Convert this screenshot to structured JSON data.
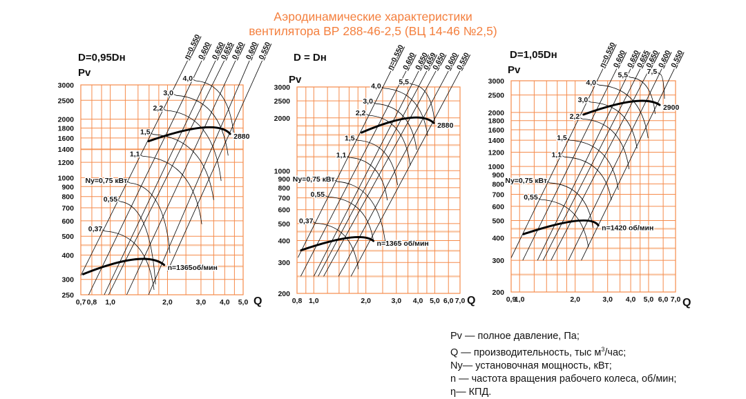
{
  "title": {
    "line1": "Аэродинамические характеристики",
    "line2": "вентилятора  ВР 288-46-2,5 (ВЦ 14-46 №2,5)"
  },
  "colors": {
    "grid": "#f58a4a",
    "grid_light": "#f9c7a6",
    "title": "#f4803f",
    "curves": "#000000"
  },
  "chart_data": [
    {
      "type": "line",
      "title": "D=0,95Dн",
      "ylabel": "Pv",
      "xlabel": "Q",
      "xscale": "log",
      "yscale": "log",
      "xlim": [
        0.7,
        5.0
      ],
      "ylim": [
        250,
        3000
      ],
      "grid": true,
      "xticks": [
        {
          "v": 0.7,
          "t": "0,7"
        },
        {
          "v": 0.8,
          "t": "0,8"
        },
        {
          "v": 1.0,
          "t": "1,0"
        },
        {
          "v": 2.0,
          "t": "2,0"
        },
        {
          "v": 3.0,
          "t": "3,0"
        },
        {
          "v": 4.0,
          "t": "4,0"
        },
        {
          "v": 5.0,
          "t": "5,0"
        }
      ],
      "yticks": [
        {
          "v": 250,
          "t": "250"
        },
        {
          "v": 300,
          "t": "300"
        },
        {
          "v": 400,
          "t": "400"
        },
        {
          "v": 500,
          "t": "500"
        },
        {
          "v": 600,
          "t": "600"
        },
        {
          "v": 700,
          "t": "700"
        },
        {
          "v": 800,
          "t": "800"
        },
        {
          "v": 900,
          "t": "900"
        },
        {
          "v": 1000,
          "t": "1000"
        },
        {
          "v": 1200,
          "t": "1200"
        },
        {
          "v": 1400,
          "t": "1400"
        },
        {
          "v": 1600,
          "t": "1600"
        },
        {
          "v": 1800,
          "t": "1800"
        },
        {
          "v": 2000,
          "t": "2000"
        },
        {
          "v": 2500,
          "t": "2500"
        },
        {
          "v": 3000,
          "t": "3000"
        }
      ],
      "grid_x": [
        0.7,
        0.8,
        0.9,
        1.0,
        1.2,
        1.4,
        1.6,
        1.8,
        2.0,
        2.5,
        3.0,
        3.5,
        4.0,
        4.5,
        5.0
      ],
      "grid_x_light": [],
      "grid_y_light": [
        350,
        450,
        1400
      ],
      "series": [
        {
          "name": "2880",
          "points": [
            [
              1.59,
              1540
            ],
            [
              3.06,
              1810
            ],
            [
              4.27,
              1680
            ]
          ]
        },
        {
          "name": "n=1365об/мин",
          "points": [
            [
              0.72,
              319
            ],
            [
              1.34,
              380
            ],
            [
              1.92,
              356
            ]
          ]
        }
      ],
      "efficiency_lines": [
        {
          "label": "η=0.550",
          "points": [
            [
              0.7,
              314
            ],
            [
              2.55,
              4000
            ]
          ]
        },
        {
          "label": "0,600",
          "points": [
            [
              0.77,
              250
            ],
            [
              3.03,
              4000
            ]
          ]
        },
        {
          "label": "0,650",
          "points": [
            [
              0.93,
              250
            ],
            [
              3.58,
              4000
            ]
          ]
        },
        {
          "label": "0,655",
          "points": [
            [
              0.98,
              250
            ],
            [
              3.98,
              4000
            ]
          ]
        },
        {
          "label": "0,650",
          "points": [
            [
              1.22,
              250
            ],
            [
              4.56,
              4000
            ]
          ]
        },
        {
          "label": "0,600",
          "points": [
            [
              1.59,
              250
            ],
            [
              5.4,
              4000
            ]
          ]
        },
        {
          "label": "0,550",
          "points": [
            [
              2.0,
              330
            ],
            [
              6.3,
              4000
            ]
          ]
        }
      ],
      "power_curves": [
        {
          "label": "4,0",
          "points": [
            [
              2.81,
              3150
            ],
            [
              4.45,
              1710
            ]
          ]
        },
        {
          "label": "3,0",
          "points": [
            [
              2.22,
              2650
            ],
            [
              4.17,
              1300
            ]
          ]
        },
        {
          "label": "2,2",
          "points": [
            [
              1.96,
              2220
            ],
            [
              3.83,
              963
            ]
          ]
        },
        {
          "label": "1,5",
          "points": [
            [
              1.68,
              1670
            ],
            [
              3.5,
              768
            ]
          ]
        },
        {
          "label": "1,1",
          "points": [
            [
              1.48,
              1290
            ],
            [
              3.03,
              577
            ]
          ]
        },
        {
          "label": "Ny=0,75 кВт",
          "points": [
            [
              1.27,
              940
            ],
            [
              2.06,
              409
            ]
          ]
        },
        {
          "label": "0,55",
          "points": [
            [
              1.13,
              754
            ],
            [
              1.73,
              283
            ]
          ]
        },
        {
          "label": "0,37",
          "points": [
            [
              0.94,
              531
            ],
            [
              1.7,
              265
            ]
          ]
        }
      ]
    },
    {
      "type": "line",
      "title": "D = Dн",
      "ylabel": "Pv",
      "xlabel": "Q",
      "xscale": "log",
      "yscale": "log",
      "xlim": [
        0.8,
        7.0
      ],
      "ylim": [
        200,
        3000
      ],
      "grid": true,
      "xticks": [
        {
          "v": 0.8,
          "t": "0,8"
        },
        {
          "v": 1.0,
          "t": "1,0"
        },
        {
          "v": 2.0,
          "t": "2,0"
        },
        {
          "v": 3.0,
          "t": "3,0"
        },
        {
          "v": 4.0,
          "t": "4,0"
        },
        {
          "v": 5.0,
          "t": "5,0"
        },
        {
          "v": 6.0,
          "t": "6,0"
        },
        {
          "v": 7.0,
          "t": "7,0"
        }
      ],
      "yticks": [
        {
          "v": 200,
          "t": "200"
        },
        {
          "v": 300,
          "t": "300"
        },
        {
          "v": 400,
          "t": "400"
        },
        {
          "v": 500,
          "t": "500"
        },
        {
          "v": 600,
          "t": "600"
        },
        {
          "v": 700,
          "t": "700"
        },
        {
          "v": 800,
          "t": "800"
        },
        {
          "v": 900,
          "t": "900"
        },
        {
          "v": 1000,
          "t": "1000"
        },
        {
          "v": 2000,
          "t": "2000"
        },
        {
          "v": 2500,
          "t": "2500"
        },
        {
          "v": 3000,
          "t": "3000"
        }
      ],
      "grid_x": [
        0.8,
        0.9,
        1.0,
        1.2,
        1.4,
        1.6,
        1.8,
        2.0,
        2.5,
        3.0,
        3.5,
        4.0,
        4.5,
        5.0,
        6.0,
        7.0
      ],
      "grid_x_light": [],
      "grid_y_light": [
        250,
        350,
        450,
        1200,
        1400,
        1600,
        1800
      ],
      "series": [
        {
          "name": "2880",
          "points": [
            [
              1.89,
              1650
            ],
            [
              3.5,
              1995
            ],
            [
              4.94,
              1870
            ]
          ]
        },
        {
          "name": "n=1365 об/мин",
          "points": [
            [
              0.845,
              352
            ],
            [
              1.6,
              415
            ],
            [
              2.21,
              398
            ]
          ]
        }
      ],
      "efficiency_lines": [
        {
          "label": "η=0.550",
          "points": [
            [
              0.81,
              320
            ],
            [
              2.79,
              3700
            ]
          ]
        },
        {
          "label": "0,600",
          "points": [
            [
              0.84,
              250
            ],
            [
              3.42,
              3700
            ]
          ]
        },
        {
          "label": "0,650",
          "points": [
            [
              1.0,
              250
            ],
            [
              4.04,
              3700
            ]
          ]
        },
        {
          "label": "0,659",
          "points": [
            [
              1.06,
              250
            ],
            [
              4.5,
              3700
            ]
          ]
        },
        {
          "label": "0,650",
          "points": [
            [
              1.14,
              250
            ],
            [
              5.08,
              3700
            ]
          ]
        },
        {
          "label": "0,600",
          "points": [
            [
              1.39,
              250
            ],
            [
              6.0,
              3700
            ]
          ]
        },
        {
          "label": "0,550",
          "points": [
            [
              1.64,
              250
            ],
            [
              7.0,
              3700
            ]
          ]
        }
      ],
      "power_curves": [
        {
          "label": "5,5",
          "points": [
            [
              3.68,
              3110
            ],
            [
              4.99,
              1890
            ]
          ]
        },
        {
          "label": "4,0",
          "points": [
            [
              2.54,
              2950
            ],
            [
              4.55,
              1580
            ]
          ]
        },
        {
          "label": "3,0",
          "points": [
            [
              2.28,
              2410
            ],
            [
              3.93,
              1315
            ]
          ]
        },
        {
          "label": "2,2",
          "points": [
            [
              2.07,
              2070
            ],
            [
              3.61,
              1070
            ]
          ]
        },
        {
          "label": "1,5",
          "points": [
            [
              1.79,
              1490
            ],
            [
              3.05,
              828
            ]
          ]
        },
        {
          "label": "1,1",
          "points": [
            [
              1.6,
              1190
            ],
            [
              2.66,
              678
            ]
          ]
        },
        {
          "label": "Ny=0,75 кВт",
          "points": [
            [
              1.37,
              867
            ],
            [
              2.6,
              380
            ]
          ]
        },
        {
          "label": "0,55",
          "points": [
            [
              1.2,
              710
            ],
            [
              2.21,
              400
            ]
          ]
        },
        {
          "label": "0,37",
          "points": [
            [
              1.03,
              502
            ],
            [
              1.81,
              275
            ]
          ]
        }
      ]
    },
    {
      "type": "line",
      "title": "D=1,05Dн",
      "ylabel": "Pv",
      "xlabel": "Q",
      "xscale": "log",
      "yscale": "log",
      "xlim": [
        0.9,
        7.0
      ],
      "ylim": [
        200,
        3000
      ],
      "grid": true,
      "xticks": [
        {
          "v": 0.9,
          "t": "0,9"
        },
        {
          "v": 1.0,
          "t": "1,0"
        },
        {
          "v": 2.0,
          "t": "2,0"
        },
        {
          "v": 3.0,
          "t": "3,0"
        },
        {
          "v": 4.0,
          "t": "4,0"
        },
        {
          "v": 5.0,
          "t": "5,0"
        },
        {
          "v": 6.0,
          "t": "6,0"
        },
        {
          "v": 7.0,
          "t": "7,0"
        }
      ],
      "yticks": [
        {
          "v": 200,
          "t": "200"
        },
        {
          "v": 300,
          "t": "300"
        },
        {
          "v": 400,
          "t": "400"
        },
        {
          "v": 500,
          "t": "500"
        },
        {
          "v": 600,
          "t": "600"
        },
        {
          "v": 700,
          "t": "700"
        },
        {
          "v": 800,
          "t": "800"
        },
        {
          "v": 900,
          "t": "900"
        },
        {
          "v": 1000,
          "t": "1000"
        },
        {
          "v": 1200,
          "t": "1200"
        },
        {
          "v": 1400,
          "t": "1400"
        },
        {
          "v": 1600,
          "t": "1600"
        },
        {
          "v": 1800,
          "t": "1800"
        },
        {
          "v": 2000,
          "t": "2000"
        },
        {
          "v": 2500,
          "t": "2500"
        },
        {
          "v": 3000,
          "t": "3000"
        }
      ],
      "grid_x": [
        0.9,
        1.0,
        1.2,
        1.4,
        1.6,
        1.8,
        2.0,
        2.5,
        3.0,
        3.5,
        4.0,
        4.5,
        5.0,
        6.0,
        7.0
      ],
      "grid_x_light": [],
      "grid_y_light": [
        250,
        350,
        450
      ],
      "series": [
        {
          "name": "2900",
          "points": [
            [
              2.22,
              1945
            ],
            [
              4.07,
              2300
            ],
            [
              5.74,
              2200
            ]
          ]
        },
        {
          "name": "n=1420 об/мин",
          "points": [
            [
              1.05,
              420
            ],
            [
              2.0,
              497
            ],
            [
              2.67,
              470
            ]
          ]
        }
      ],
      "efficiency_lines": [
        {
          "label": "η=0.550",
          "points": [
            [
              0.9,
              310
            ],
            [
              2.83,
              3500
            ]
          ]
        },
        {
          "label": "0,600",
          "points": [
            [
              1.04,
              300
            ],
            [
              3.36,
              3500
            ]
          ]
        },
        {
          "label": "0,650",
          "points": [
            [
              1.25,
              300
            ],
            [
              4.0,
              3500
            ]
          ]
        },
        {
          "label": "0,655",
          "points": [
            [
              1.34,
              300
            ],
            [
              4.51,
              3500
            ]
          ]
        },
        {
          "label": "0,650",
          "points": [
            [
              1.48,
              300
            ],
            [
              5.06,
              3500
            ]
          ]
        },
        {
          "label": "0,600",
          "points": [
            [
              1.84,
              300
            ],
            [
              5.9,
              3500
            ]
          ]
        },
        {
          "label": "0,550",
          "points": [
            [
              2.16,
              300
            ],
            [
              6.9,
              3500
            ]
          ]
        }
      ],
      "power_curves": [
        {
          "label": "7,5",
          "points": [
            [
              5.75,
              3280
            ],
            [
              6.1,
              2380
            ]
          ]
        },
        {
          "label": "5,5",
          "points": [
            [
              4.0,
              3130
            ],
            [
              5.43,
              1960
            ]
          ]
        },
        {
          "label": "4,0",
          "points": [
            [
              2.69,
              2840
            ],
            [
              4.97,
              1440
            ]
          ]
        },
        {
          "label": "3,0",
          "points": [
            [
              2.43,
              2280
            ],
            [
              4.33,
              1260
            ]
          ]
        },
        {
          "label": "2,2",
          "points": [
            [
              2.19,
              1840
            ],
            [
              3.92,
              966
            ]
          ]
        },
        {
          "label": "1,5",
          "points": [
            [
              1.87,
              1400
            ],
            [
              3.43,
              741
            ]
          ]
        },
        {
          "label": "1,1",
          "points": [
            [
              1.75,
              1130
            ],
            [
              3.14,
              650
            ]
          ]
        },
        {
          "label": "Ny=0,75 кВт",
          "points": [
            [
              1.46,
              810
            ],
            [
              2.5,
              455
            ]
          ]
        },
        {
          "label": "0,55",
          "points": [
            [
              1.3,
              654
            ],
            [
              2.36,
              355
            ]
          ]
        }
      ]
    }
  ],
  "legend": {
    "items": [
      {
        "text": "Pv — полное давление, Па;"
      },
      {
        "pre": "Q  — производительность, тыс м",
        "sup": "3",
        "post": "/час;"
      },
      {
        "text": "Ny— установочная мощность, кВт;"
      },
      {
        "text": "n — частота вращения рабочего колеса, об/мин;"
      },
      {
        "text": "η— КПД."
      }
    ]
  }
}
